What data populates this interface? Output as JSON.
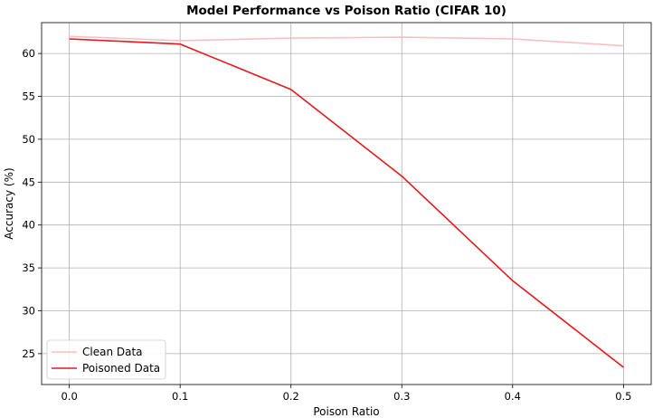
{
  "chart_data": {
    "type": "line",
    "title": "Model Performance vs Poison Ratio (CIFAR 10)",
    "xlabel": "Poison Ratio",
    "ylabel": "Accuracy (%)",
    "x": [
      0.0,
      0.1,
      0.2,
      0.3,
      0.4,
      0.5
    ],
    "x_ticks": [
      "0.0",
      "0.1",
      "0.2",
      "0.3",
      "0.4",
      "0.5"
    ],
    "y_ticks": [
      25,
      30,
      35,
      40,
      45,
      50,
      55,
      60
    ],
    "xlim": [
      -0.025,
      0.525
    ],
    "ylim": [
      21.4,
      63.6
    ],
    "grid": true,
    "legend_position": "lower-left",
    "series": [
      {
        "name": "Clean Data",
        "color": "#f9bfc2",
        "values": [
          62.0,
          61.5,
          61.8,
          61.9,
          61.7,
          60.9
        ]
      },
      {
        "name": "Poisoned Data",
        "color": "#e3191c",
        "values": [
          61.7,
          61.1,
          55.8,
          45.7,
          33.5,
          23.4
        ]
      }
    ]
  }
}
